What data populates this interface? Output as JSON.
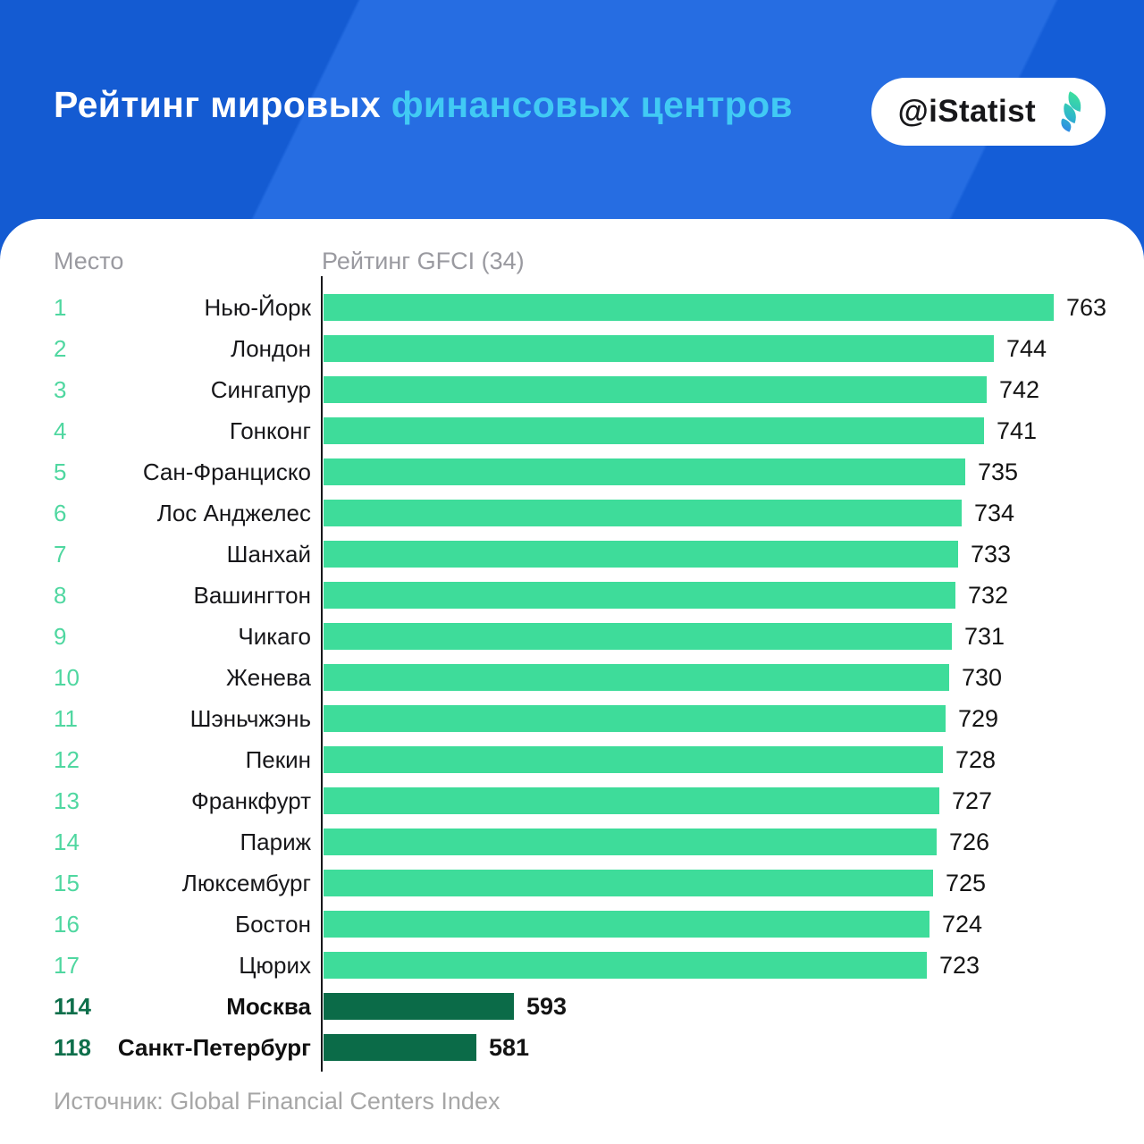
{
  "header": {
    "title_white": "Рейтинг мировых",
    "title_accent": "финансовых центров",
    "logo_text": "@iStatist"
  },
  "table": {
    "col_rank": "Место",
    "col_rating": "Рейтинг GFCI (34)"
  },
  "chart_data": {
    "type": "bar",
    "orientation": "horizontal",
    "title": "Рейтинг мировых финансовых центров",
    "value_axis_label": "Рейтинг GFCI (34)",
    "axis_range": [
      533,
      763
    ],
    "rows": [
      {
        "rank": "1",
        "city": "Нью-Йорк",
        "value": 763,
        "highlight": false
      },
      {
        "rank": "2",
        "city": "Лондон",
        "value": 744,
        "highlight": false
      },
      {
        "rank": "3",
        "city": "Сингапур",
        "value": 742,
        "highlight": false
      },
      {
        "rank": "4",
        "city": "Гонконг",
        "value": 741,
        "highlight": false
      },
      {
        "rank": "5",
        "city": "Сан-Франциско",
        "value": 735,
        "highlight": false
      },
      {
        "rank": "6",
        "city": "Лос Анджелес",
        "value": 734,
        "highlight": false
      },
      {
        "rank": "7",
        "city": "Шанхай",
        "value": 733,
        "highlight": false
      },
      {
        "rank": "8",
        "city": "Вашингтон",
        "value": 732,
        "highlight": false
      },
      {
        "rank": "9",
        "city": "Чикаго",
        "value": 731,
        "highlight": false
      },
      {
        "rank": "10",
        "city": "Женева",
        "value": 730,
        "highlight": false
      },
      {
        "rank": "11",
        "city": "Шэньчжэнь",
        "value": 729,
        "highlight": false
      },
      {
        "rank": "12",
        "city": "Пекин",
        "value": 728,
        "highlight": false
      },
      {
        "rank": "13",
        "city": "Франкфурт",
        "value": 727,
        "highlight": false
      },
      {
        "rank": "14",
        "city": "Париж",
        "value": 726,
        "highlight": false
      },
      {
        "rank": "15",
        "city": "Люксембург",
        "value": 725,
        "highlight": false
      },
      {
        "rank": "16",
        "city": "Бостон",
        "value": 724,
        "highlight": false
      },
      {
        "rank": "17",
        "city": "Цюрих",
        "value": 723,
        "highlight": false
      },
      {
        "rank": "114",
        "city": "Москва",
        "value": 593,
        "highlight": true
      },
      {
        "rank": "118",
        "city": "Санкт-Петербург",
        "value": 581,
        "highlight": true
      }
    ],
    "colors": {
      "bar": "#3edc9a",
      "bar_highlight": "#0b6b48",
      "rank": "#4fd7a0",
      "rank_highlight": "#0e6f4b",
      "background": "#1562E0",
      "title_accent": "#41CAF4"
    },
    "legend": null,
    "grid": false
  },
  "footer": {
    "source": "Источник: Global Financial Centers Index"
  }
}
